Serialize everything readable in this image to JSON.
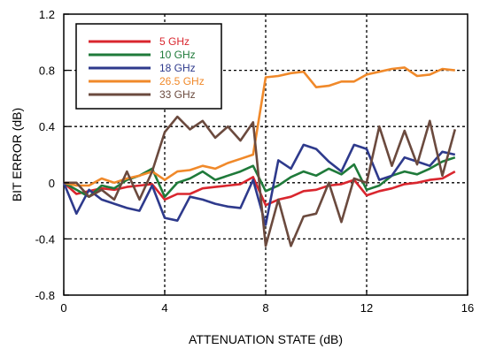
{
  "chart_data": {
    "type": "line",
    "title": "",
    "xlabel": "ATTENUATION STATE (dB)",
    "ylabel": "BIT ERROR (dB)",
    "xlim": [
      0,
      16
    ],
    "ylim": [
      -0.8,
      1.2
    ],
    "xticks": [
      "0",
      "4",
      "8",
      "12",
      "16"
    ],
    "yticks": [
      "-0.8",
      "-0.4",
      "0",
      "0.4",
      "0.8",
      "1.2"
    ],
    "grid": "dashed, at major ticks",
    "legend_position": "top-left",
    "series": [
      {
        "name": "5 GHz",
        "color": "#d9262e",
        "x": [
          0,
          0.5,
          1,
          1.5,
          2,
          2.5,
          3,
          3.5,
          4,
          4.5,
          5,
          5.5,
          6,
          6.5,
          7,
          7.5,
          8,
          8.5,
          9,
          9.5,
          10,
          10.5,
          11,
          11.5,
          12,
          12.5,
          13,
          13.5,
          14,
          14.5,
          15,
          15.5
        ],
        "values": [
          0,
          -0.08,
          -0.06,
          -0.04,
          -0.05,
          -0.03,
          -0.02,
          -0.01,
          -0.12,
          -0.08,
          -0.08,
          -0.04,
          -0.03,
          -0.02,
          -0.01,
          0.04,
          -0.16,
          -0.12,
          -0.1,
          -0.06,
          -0.05,
          -0.02,
          -0.01,
          0.02,
          -0.09,
          -0.06,
          -0.04,
          -0.01,
          0.0,
          0.02,
          0.03,
          0.08
        ]
      },
      {
        "name": "10 GHz",
        "color": "#1f7a3a",
        "x": [
          0,
          0.5,
          1,
          1.5,
          2,
          2.5,
          3,
          3.5,
          4,
          4.5,
          5,
          5.5,
          6,
          6.5,
          7,
          7.5,
          8,
          8.5,
          9,
          9.5,
          10,
          10.5,
          11,
          11.5,
          12,
          12.5,
          13,
          13.5,
          14,
          14.5,
          15,
          15.5
        ],
        "values": [
          0,
          -0.05,
          -0.1,
          -0.02,
          -0.04,
          0.02,
          0.05,
          0.1,
          -0.1,
          0.0,
          0.03,
          0.08,
          0.02,
          0.05,
          0.08,
          0.12,
          -0.06,
          -0.02,
          0.04,
          0.08,
          0.05,
          0.1,
          0.06,
          0.13,
          -0.05,
          -0.02,
          0.05,
          0.08,
          0.06,
          0.1,
          0.15,
          0.18
        ]
      },
      {
        "name": "18 GHz",
        "color": "#2e3a8c",
        "x": [
          0,
          0.5,
          1,
          1.5,
          2,
          2.5,
          3,
          3.5,
          4,
          4.5,
          5,
          5.5,
          6,
          6.5,
          7,
          7.5,
          8,
          8.5,
          9,
          9.5,
          10,
          10.5,
          11,
          11.5,
          12,
          12.5,
          13,
          13.5,
          14,
          14.5,
          15,
          15.5
        ],
        "values": [
          0,
          -0.22,
          -0.05,
          -0.12,
          -0.15,
          -0.18,
          -0.2,
          -0.02,
          -0.25,
          -0.27,
          -0.1,
          -0.12,
          -0.15,
          -0.17,
          -0.18,
          0.02,
          -0.3,
          0.16,
          0.1,
          0.27,
          0.24,
          0.15,
          0.08,
          0.27,
          0.24,
          0.02,
          0.05,
          0.18,
          0.15,
          0.12,
          0.22,
          0.2
        ]
      },
      {
        "name": "26.5 GHz",
        "color": "#f0892a",
        "x": [
          0,
          0.5,
          1,
          1.5,
          2,
          2.5,
          3,
          3.5,
          4,
          4.5,
          5,
          5.5,
          6,
          6.5,
          7,
          7.5,
          8,
          8.5,
          9,
          9.5,
          10,
          10.5,
          11,
          11.5,
          12,
          12.5,
          13,
          13.5,
          14,
          14.5,
          15,
          15.5
        ],
        "values": [
          0,
          -0.02,
          -0.02,
          0.03,
          0.0,
          0.03,
          0.05,
          0.08,
          0.02,
          0.08,
          0.09,
          0.12,
          0.1,
          0.14,
          0.17,
          0.2,
          0.75,
          0.76,
          0.78,
          0.79,
          0.68,
          0.69,
          0.72,
          0.72,
          0.77,
          0.79,
          0.81,
          0.82,
          0.76,
          0.77,
          0.81,
          0.8
        ]
      },
      {
        "name": "33 GHz",
        "color": "#6b4a3e",
        "x": [
          0,
          0.5,
          1,
          1.5,
          2,
          2.5,
          3,
          3.5,
          4,
          4.5,
          5,
          5.5,
          6,
          6.5,
          7,
          7.5,
          8,
          8.5,
          9,
          9.5,
          10,
          10.5,
          11,
          11.5,
          12,
          12.5,
          13,
          13.5,
          14,
          14.5,
          15,
          15.5
        ],
        "values": [
          0,
          0.0,
          -0.1,
          -0.05,
          -0.12,
          0.08,
          -0.12,
          0.08,
          0.36,
          0.47,
          0.38,
          0.44,
          0.32,
          0.4,
          0.3,
          0.43,
          -0.45,
          -0.12,
          -0.45,
          -0.24,
          -0.22,
          0.0,
          -0.28,
          0.03,
          0.0,
          0.4,
          0.12,
          0.37,
          0.13,
          0.44,
          0.05,
          0.38
        ]
      }
    ]
  }
}
